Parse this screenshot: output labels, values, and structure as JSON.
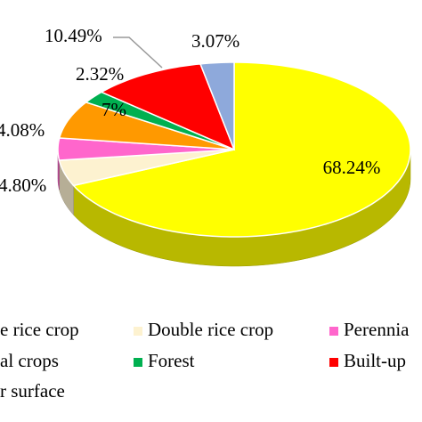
{
  "chart_data": {
    "type": "pie3d",
    "categories": [
      "e rice crop",
      "Double rice crop",
      "Perennia",
      "al crops",
      "Forest",
      "Built-up",
      "r surface"
    ],
    "values": [
      68.24,
      4.8,
      4.08,
      7,
      2.32,
      10.49,
      3.07
    ],
    "value_labels": [
      "68.24%",
      "4.80%",
      "4.08%",
      "7%",
      "2.32%",
      "10.49%",
      "3.07%"
    ],
    "colors": [
      "#ffff00",
      "#fdf2d0",
      "#ff66cc",
      "#ff9900",
      "#00b050",
      "#ff0000",
      "#8ea9db"
    ]
  }
}
